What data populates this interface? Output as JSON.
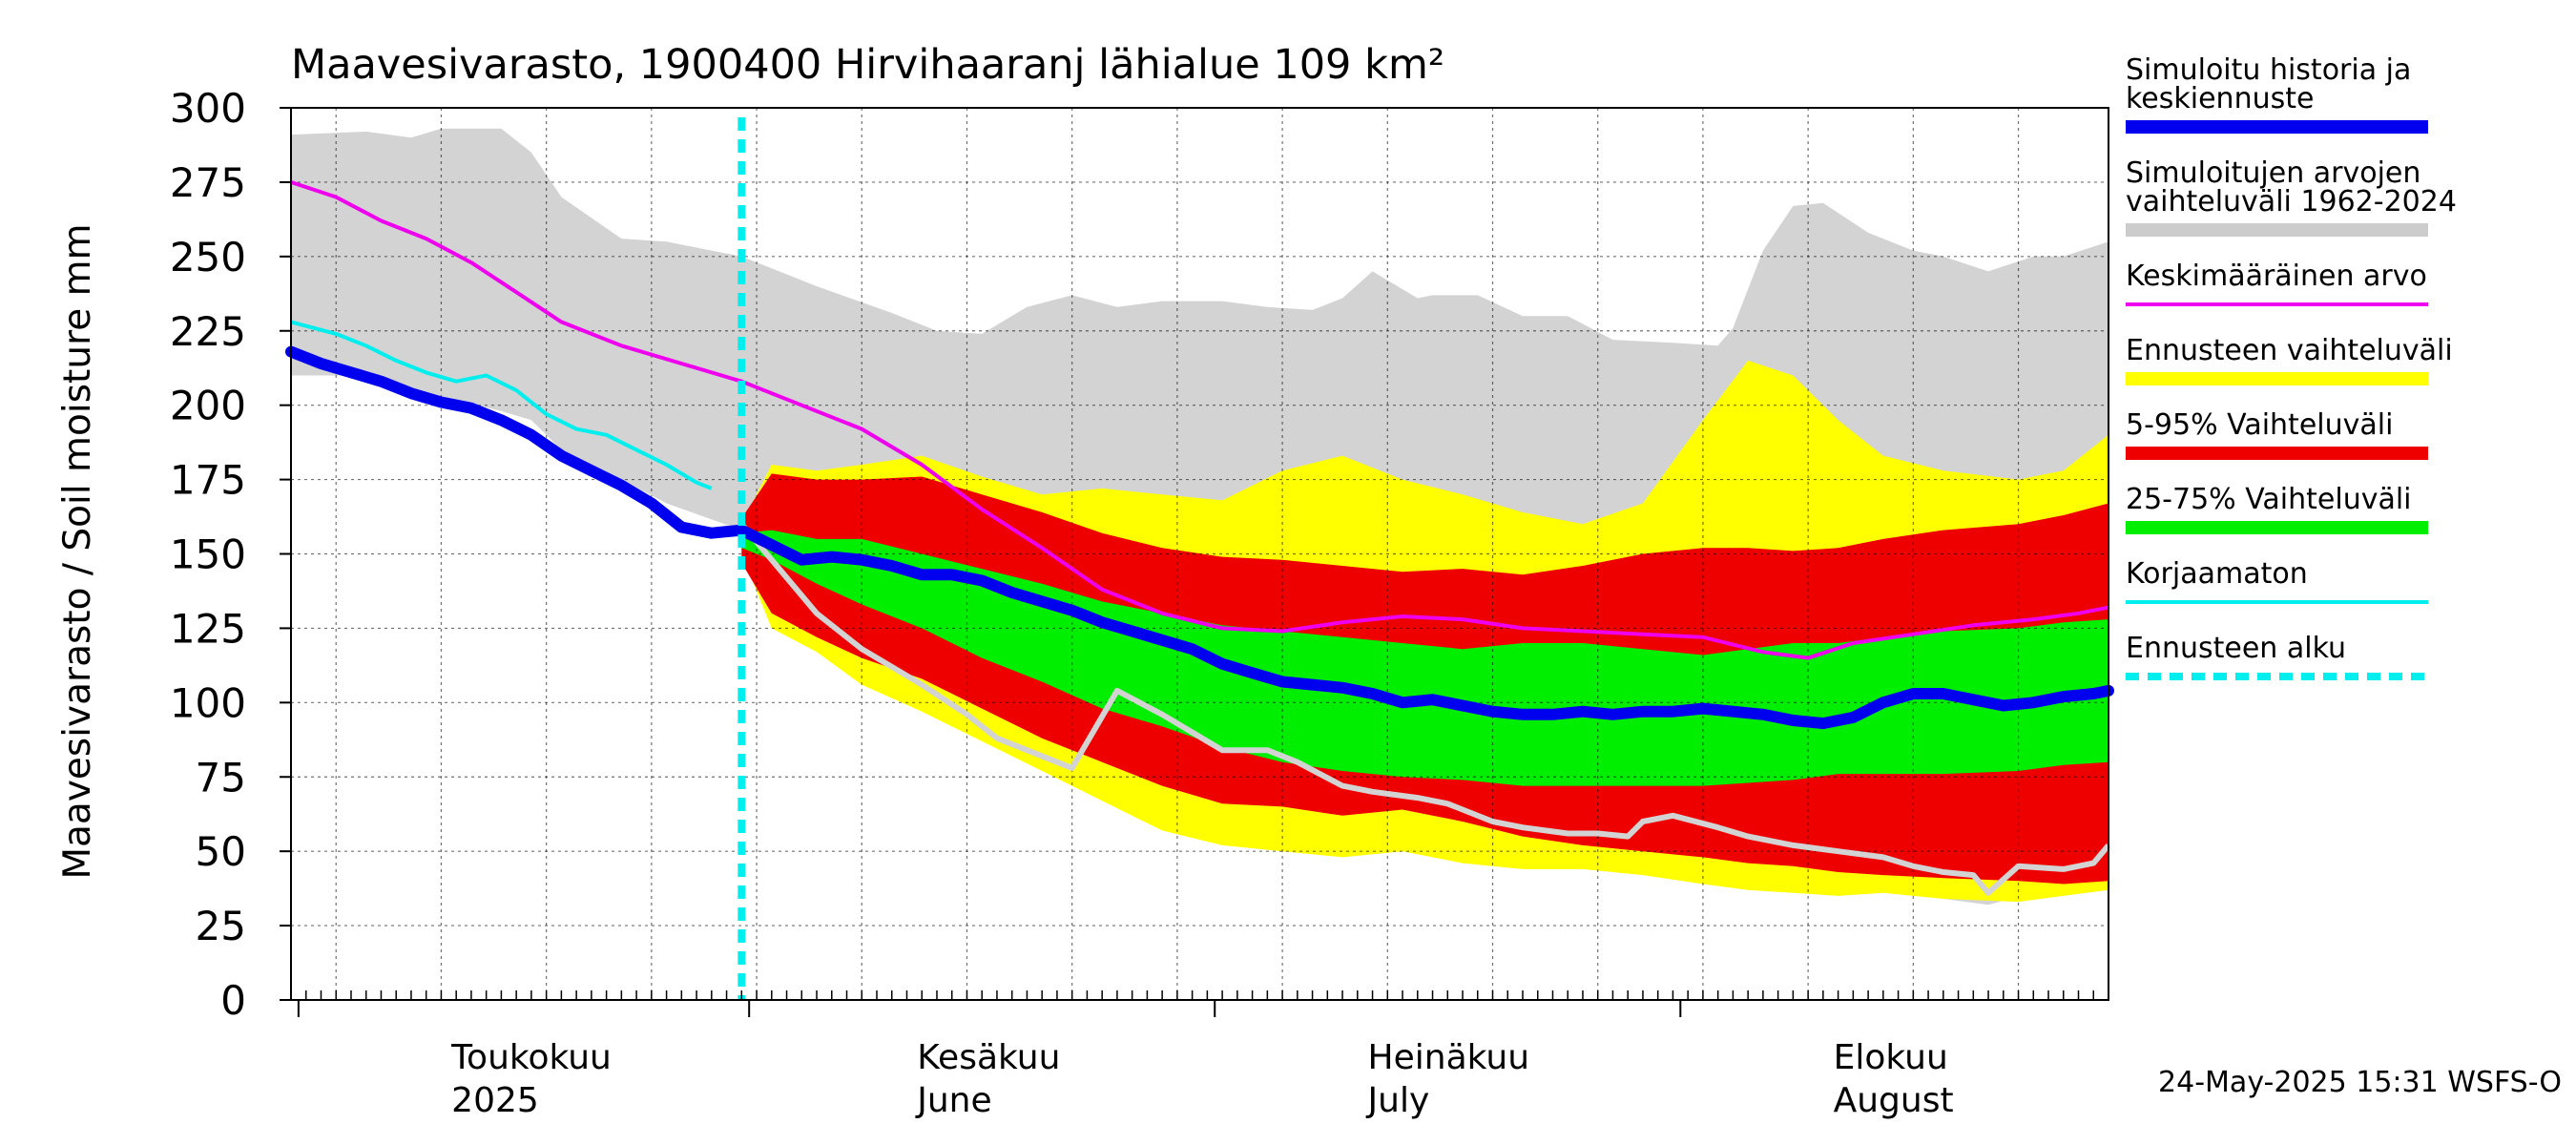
{
  "chart_data": {
    "type": "line",
    "title": "Maavesivarasto, 1900400 Hirvihaaranj lähialue 109 km²",
    "ylabel": "Maavesivarasto / Soil moisture   mm",
    "ylim": [
      0,
      300
    ],
    "y_ticks": [
      "300",
      "275",
      "250",
      "225",
      "200",
      "175",
      "150",
      "125",
      "100",
      "75",
      "50",
      "25",
      "0"
    ],
    "x_range_days": [
      0,
      121
    ],
    "forecast_start_day": 30,
    "x_labels": [
      {
        "line1": "Toukokuu",
        "line2": "2025",
        "day": 11
      },
      {
        "line1": "Kesäkuu",
        "line2": "June",
        "day": 42
      },
      {
        "line1": "Heinäkuu",
        "line2": "July",
        "day": 72
      },
      {
        "line1": "Elokuu",
        "line2": "August",
        "day": 103
      }
    ],
    "timestamp": "24-May-2025 15:31 WSFS-O",
    "legend": [
      {
        "label1": "Simuloitu historia ja",
        "label2": "keskiennuste",
        "color": "#0000ee",
        "style": "thick"
      },
      {
        "label1": "Simuloitujen arvojen",
        "label2": "vaihteluväli 1962-2024",
        "color": "#cccccc",
        "style": "thick"
      },
      {
        "label1": "Keskimääräinen arvo",
        "label2": "",
        "color": "#ee00ee",
        "style": "thin"
      },
      {
        "label1": "Ennusteen vaihteluväli",
        "label2": "",
        "color": "#ffff00",
        "style": "thick"
      },
      {
        "label1": "5-95% Vaihteluväli",
        "label2": "",
        "color": "#ee0000",
        "style": "thick"
      },
      {
        "label1": "25-75% Vaihteluväli",
        "label2": "",
        "color": "#00ee00",
        "style": "thick"
      },
      {
        "label1": "Korjaamaton",
        "label2": "",
        "color": "#00eeee",
        "style": "thin"
      },
      {
        "label1": "Ennusteen alku",
        "label2": "",
        "color": "#00eeee",
        "style": "dashed"
      }
    ],
    "series": {
      "hist_range": {
        "x": [
          0,
          5,
          8,
          10,
          14,
          16,
          18,
          22,
          25,
          30,
          35,
          40,
          43,
          46,
          49,
          52,
          55,
          58,
          62,
          65,
          68,
          70,
          72,
          75,
          76,
          79,
          82,
          85,
          88,
          92,
          95,
          96,
          98,
          100,
          102,
          105,
          108,
          110,
          113,
          116,
          118,
          121
        ],
        "upper": [
          291,
          292,
          290,
          293,
          293,
          285,
          270,
          256,
          255,
          250,
          240,
          231,
          225,
          224,
          233,
          237,
          233,
          235,
          235,
          233,
          232,
          236,
          245,
          236,
          237,
          237,
          230,
          230,
          222,
          221,
          220,
          226,
          252,
          267,
          268,
          258,
          252,
          250,
          245,
          250,
          250,
          255
        ],
        "lower": [
          210,
          210,
          205,
          203,
          198,
          195,
          185,
          175,
          167,
          158,
          140,
          118,
          110,
          105,
          95,
          85,
          80,
          77,
          72,
          75,
          72,
          70,
          69,
          67,
          60,
          57,
          55,
          52,
          54,
          52,
          50,
          48,
          45,
          42,
          40,
          38,
          36,
          34,
          32,
          36,
          38,
          40
        ]
      },
      "mean": {
        "x": [
          0,
          3,
          6,
          9,
          12,
          15,
          18,
          22,
          26,
          30,
          34,
          38,
          42,
          46,
          50,
          54,
          58,
          62,
          66,
          70,
          74,
          78,
          82,
          86,
          90,
          94,
          98,
          101,
          104,
          108,
          112,
          116,
          119,
          121
        ],
        "y": [
          275,
          270,
          262,
          256,
          248,
          238,
          228,
          220,
          214,
          208,
          200,
          192,
          180,
          165,
          152,
          138,
          130,
          125,
          124,
          127,
          129,
          128,
          125,
          124,
          123,
          122,
          117,
          115,
          120,
          123,
          126,
          128,
          130,
          132
        ]
      },
      "uncorrected": {
        "x": [
          0,
          3,
          5,
          7,
          9,
          11,
          13,
          15,
          17,
          19,
          21,
          23,
          25,
          27,
          28
        ],
        "y": [
          228,
          224,
          220,
          215,
          211,
          208,
          210,
          205,
          197,
          192,
          190,
          185,
          180,
          174,
          172
        ]
      },
      "forecast_range": {
        "x": [
          30,
          32,
          35,
          38,
          42,
          46,
          50,
          54,
          58,
          62,
          66,
          70,
          74,
          78,
          82,
          86,
          90,
          94,
          97,
          100,
          103,
          106,
          110,
          115,
          118,
          121
        ],
        "upper": [
          160,
          180,
          178,
          180,
          183,
          176,
          170,
          172,
          170,
          168,
          178,
          183,
          175,
          170,
          164,
          160,
          167,
          195,
          215,
          210,
          195,
          183,
          178,
          175,
          178,
          190
        ],
        "lower": [
          150,
          125,
          117,
          106,
          97,
          87,
          77,
          67,
          57,
          52,
          50,
          48,
          50,
          46,
          44,
          44,
          42,
          39,
          37,
          36,
          35,
          36,
          34,
          33,
          35,
          37
        ]
      },
      "p5_95": {
        "x": [
          30,
          32,
          35,
          38,
          42,
          46,
          50,
          54,
          58,
          62,
          66,
          70,
          74,
          78,
          82,
          86,
          90,
          94,
          97,
          100,
          103,
          106,
          110,
          115,
          118,
          121
        ],
        "upper": [
          162,
          177,
          175,
          175,
          176,
          170,
          164,
          157,
          152,
          149,
          148,
          146,
          144,
          145,
          143,
          146,
          150,
          152,
          152,
          151,
          152,
          155,
          158,
          160,
          163,
          167
        ],
        "lower": [
          147,
          130,
          122,
          115,
          108,
          98,
          88,
          80,
          72,
          66,
          65,
          62,
          64,
          60,
          55,
          52,
          50,
          48,
          46,
          45,
          43,
          42,
          41,
          40,
          39,
          40
        ]
      },
      "p25_75": {
        "x": [
          30,
          32,
          35,
          38,
          42,
          46,
          50,
          54,
          58,
          62,
          66,
          70,
          74,
          78,
          82,
          86,
          90,
          94,
          97,
          100,
          103,
          106,
          110,
          115,
          118,
          121
        ],
        "upper": [
          157,
          158,
          155,
          155,
          150,
          145,
          140,
          134,
          130,
          126,
          124,
          122,
          120,
          118,
          120,
          120,
          118,
          116,
          118,
          120,
          120,
          122,
          124,
          125,
          127,
          128
        ],
        "lower": [
          152,
          148,
          140,
          133,
          125,
          115,
          107,
          98,
          92,
          85,
          80,
          77,
          75,
          74,
          72,
          72,
          72,
          72,
          73,
          74,
          76,
          76,
          76,
          77,
          79,
          80
        ]
      },
      "gray_forecast": {
        "x": [
          30,
          32,
          35,
          38,
          42,
          45,
          47,
          50,
          52,
          55,
          58,
          60,
          62,
          65,
          67,
          70,
          72,
          75,
          77,
          80,
          82,
          85,
          87,
          89,
          90,
          92,
          95,
          97,
          100,
          103,
          106,
          108,
          110,
          112,
          113,
          115,
          118,
          120,
          121
        ],
        "y": [
          160,
          148,
          130,
          118,
          106,
          96,
          88,
          82,
          78,
          104,
          96,
          90,
          84,
          84,
          80,
          72,
          70,
          68,
          66,
          60,
          58,
          56,
          56,
          55,
          60,
          62,
          58,
          55,
          52,
          50,
          48,
          45,
          43,
          42,
          36,
          45,
          44,
          46,
          52
        ]
      },
      "main": {
        "x": [
          0,
          2,
          4,
          6,
          8,
          10,
          12,
          14,
          16,
          18,
          20,
          22,
          24,
          26,
          28,
          30,
          32,
          34,
          36,
          38,
          40,
          42,
          44,
          46,
          48,
          50,
          52,
          54,
          56,
          58,
          60,
          62,
          64,
          66,
          68,
          70,
          72,
          74,
          76,
          78,
          80,
          82,
          84,
          86,
          88,
          90,
          92,
          94,
          96,
          98,
          100,
          102,
          104,
          106,
          108,
          110,
          112,
          114,
          116,
          118,
          120,
          121
        ],
        "y": [
          218,
          214,
          211,
          208,
          204,
          201,
          199,
          195,
          190,
          183,
          178,
          173,
          167,
          159,
          157,
          158,
          153,
          148,
          149,
          148,
          146,
          143,
          143,
          141,
          137,
          134,
          131,
          127,
          124,
          121,
          118,
          113,
          110,
          107,
          106,
          105,
          103,
          100,
          101,
          99,
          97,
          96,
          96,
          97,
          96,
          97,
          97,
          98,
          97,
          96,
          94,
          93,
          95,
          100,
          103,
          103,
          101,
          99,
          100,
          102,
          103,
          104
        ]
      }
    }
  }
}
